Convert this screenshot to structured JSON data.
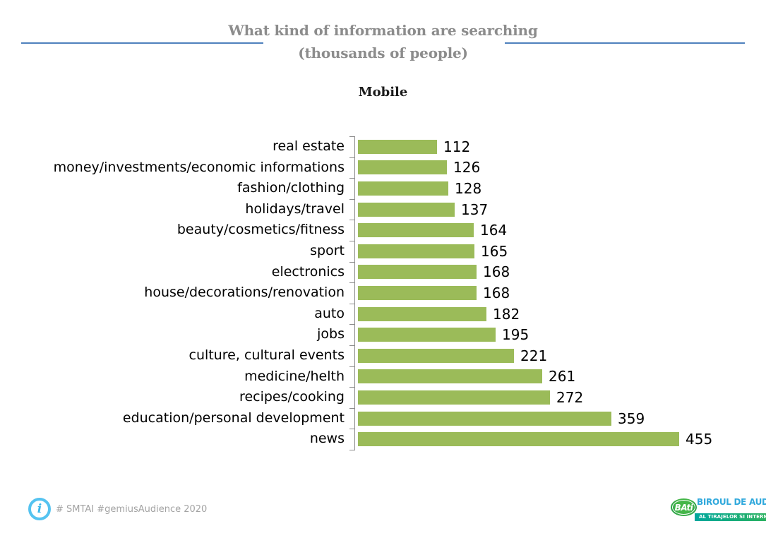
{
  "header": {
    "title": "What kind of information are searching",
    "subtitle": "(thousands of people)",
    "rule_color": "#4f81bd"
  },
  "chart_data": {
    "type": "bar",
    "orientation": "horizontal",
    "title": "Mobile",
    "categories": [
      "real estate",
      "money/investments/economic informations",
      "fashion/clothing",
      "holidays/travel",
      "beauty/cosmetics/fitness",
      "sport",
      "electronics",
      "house/decorations/renovation",
      "auto",
      "jobs",
      "culture, cultural events",
      "medicine/helth",
      "recipes/cooking",
      "education/personal development",
      "news"
    ],
    "values": [
      112,
      126,
      128,
      137,
      164,
      165,
      168,
      168,
      182,
      195,
      221,
      261,
      272,
      359,
      455
    ],
    "xlabel": "",
    "ylabel": "",
    "xlim": [
      0,
      455
    ],
    "grid": false,
    "legend": false,
    "data_labels": true,
    "bar_color": "#9bbb59",
    "axis_color": "#8c8c8c"
  },
  "footer": {
    "info_icon": "info-icon",
    "info_glyph": "i",
    "hashtags": "# SMTAI #gemiusAudience 2020",
    "logo": {
      "badge": "BAti",
      "line1": "BIROUL DE AUDIT",
      "line2": "AL TIRAJELOR SI INTERNETULUI"
    }
  }
}
